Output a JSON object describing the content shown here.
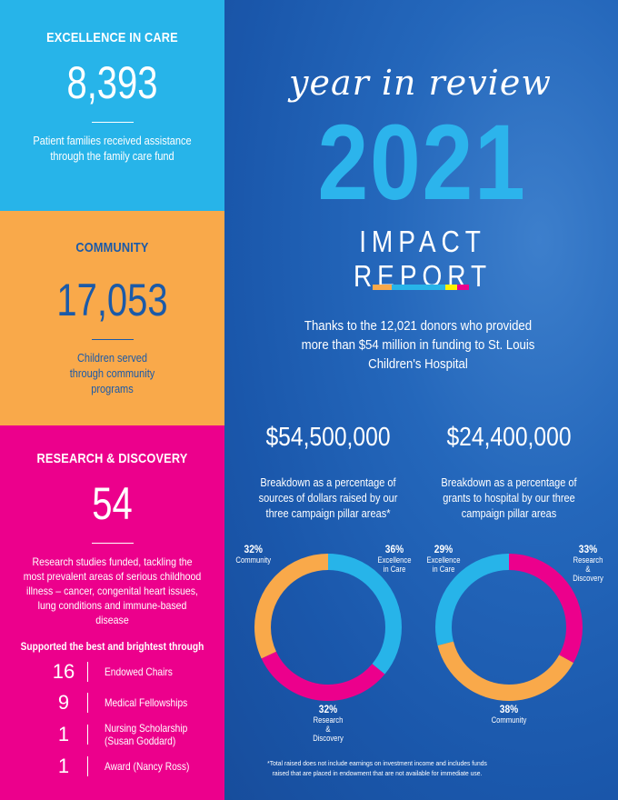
{
  "left": {
    "excellence": {
      "title": "EXCELLENCE IN CARE",
      "value": "8,393",
      "desc": "Patient families received assistance through the family care fund",
      "color": "#27b4e9"
    },
    "community": {
      "title": "COMMUNITY",
      "value": "17,053",
      "desc": "Children served through community programs",
      "color": "#f9a94a"
    },
    "research": {
      "title": "RESEARCH & DISCOVERY",
      "value": "54",
      "desc": "Research studies funded, tackling the most prevalent areas of serious childhood illness – cancer, congenital heart issues, lung conditions and immune-based disease",
      "subtitle": "Supported the best and brightest through",
      "color": "#ec008c",
      "stats": [
        {
          "n": "16",
          "label": "Endowed Chairs"
        },
        {
          "n": "9",
          "label": "Medical Fellowships"
        },
        {
          "n": "1",
          "label": "Nursing Scholarship (Susan Goddard)"
        },
        {
          "n": "1",
          "label": "Award (Nancy Ross)"
        }
      ]
    }
  },
  "hero": {
    "script": "year in review",
    "year": "2021",
    "subtitle": "IMPACT REPORT",
    "thanks": "Thanks to the 12,021 donors who provided more than $54 million in funding to St. Louis Children's Hospital"
  },
  "chart_data": [
    {
      "type": "pie",
      "style": "donut",
      "title": "$54,500,000",
      "subtitle": "Breakdown as a percentage of sources of dollars raised by our three campaign pillar areas*",
      "slices": [
        {
          "label": "Excellence in Care",
          "value": 36,
          "display": "36%",
          "color": "#27b4e9"
        },
        {
          "label": "Research & Discovery",
          "value": 32,
          "display": "32%",
          "color": "#ec008c"
        },
        {
          "label": "Community",
          "value": 32,
          "display": "32%",
          "color": "#f9a94a"
        }
      ]
    },
    {
      "type": "pie",
      "style": "donut",
      "title": "$24,400,000",
      "subtitle": "Breakdown as a percentage of grants to hospital by our three campaign pillar areas",
      "slices": [
        {
          "label": "Research & Discovery",
          "value": 33,
          "display": "33%",
          "color": "#ec008c"
        },
        {
          "label": "Community",
          "value": 38,
          "display": "38%",
          "color": "#f9a94a"
        },
        {
          "label": "Excellence in Care",
          "value": 29,
          "display": "29%",
          "color": "#27b4e9"
        }
      ]
    }
  ],
  "footnote": "*Total raised does not include earnings on investment income and includes funds raised that are placed in endowment that are not available for immediate use."
}
